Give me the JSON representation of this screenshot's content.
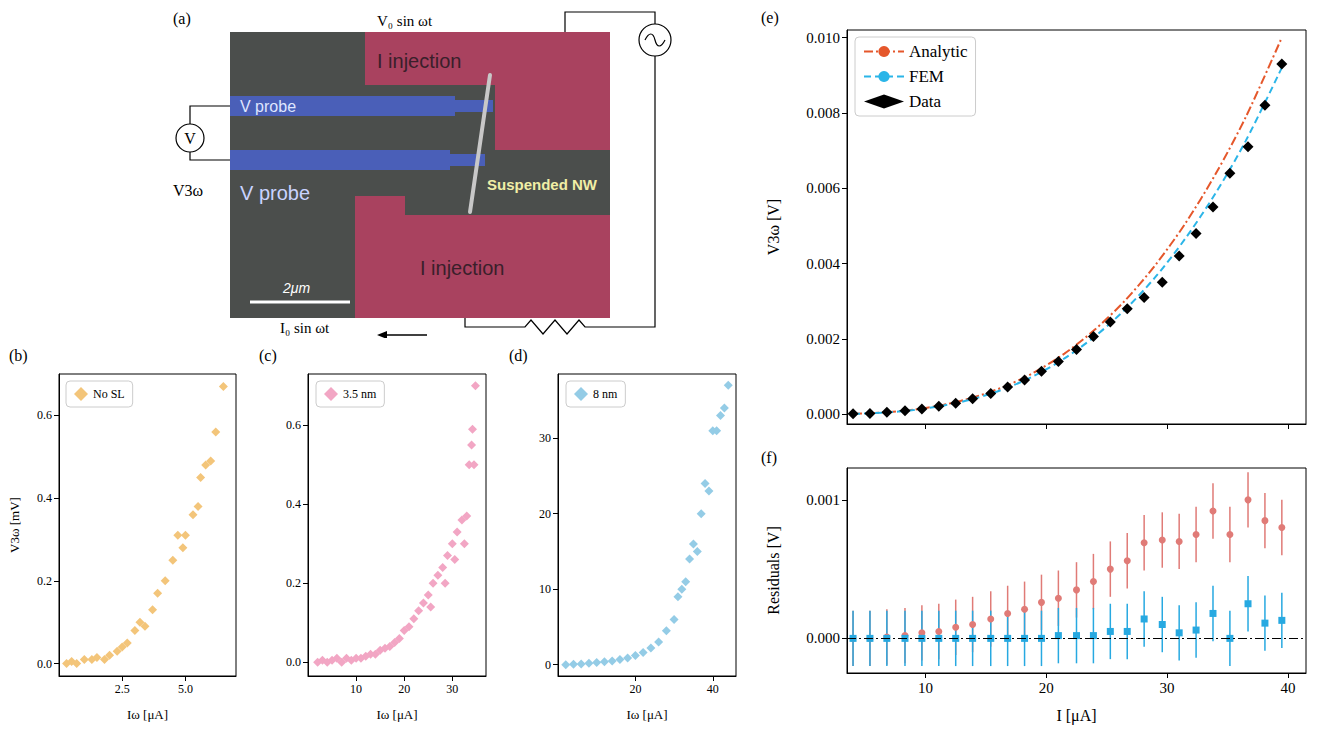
{
  "diagram": {
    "label": "(a)",
    "probes": [
      "V probe",
      "V probe"
    ],
    "injections": [
      "I injection",
      "I injection"
    ],
    "nanowire": "Suspended NW",
    "scale_bar": "2μm",
    "source": "V₀ sin ωt",
    "meter": "V",
    "measured": "V3ω",
    "current": "I₀ sin ωt"
  },
  "chart_data": [
    {
      "label": "(b)",
      "type": "scatter",
      "x_label": "Iω [μA]",
      "y_label": "V3ω [mV]",
      "xlim": [
        0,
        7
      ],
      "xticks": [
        2.5,
        {
          "value": 5,
          "label": "5.0"
        }
      ],
      "ylim": [
        -0.03,
        0.7
      ],
      "yticks": [
        {
          "value": 0,
          "label": "0.0"
        },
        0.2,
        0.4,
        0.6
      ],
      "legend": "upper left",
      "series": [
        {
          "name": "No SL",
          "color": "#f3c57a",
          "marker": "diamond",
          "x": [
            0.3,
            0.5,
            0.7,
            1.0,
            1.3,
            1.5,
            1.8,
            2.0,
            2.3,
            2.5,
            2.7,
            3.0,
            3.2,
            3.4,
            3.7,
            3.9,
            4.2,
            4.5,
            4.7,
            4.9,
            5.0,
            5.3,
            5.5,
            5.6,
            5.8,
            6.0,
            6.2,
            6.5
          ],
          "values": [
            0.0,
            0.005,
            0.0,
            0.01,
            0.01,
            0.015,
            0.01,
            0.02,
            0.03,
            0.04,
            0.05,
            0.08,
            0.1,
            0.09,
            0.13,
            0.17,
            0.2,
            0.25,
            0.31,
            0.28,
            0.31,
            0.36,
            0.38,
            0.45,
            0.48,
            0.49,
            0.56,
            0.67
          ]
        }
      ]
    },
    {
      "label": "(c)",
      "type": "scatter",
      "x_label": "Iω [μA]",
      "xlim": [
        0,
        37
      ],
      "xticks": [
        10,
        20,
        30
      ],
      "ylim": [
        -0.035,
        0.73
      ],
      "yticks": [
        {
          "value": 0,
          "label": "0.0"
        },
        0.2,
        0.4,
        0.6
      ],
      "legend": "upper left",
      "series": [
        {
          "name": "3.5 nm",
          "color": "#f2a6c4",
          "marker": "diamond",
          "x": [
            2,
            3,
            4,
            5,
            6,
            7,
            8,
            9,
            10,
            11,
            12,
            13,
            14,
            15,
            16,
            17,
            18,
            19,
            20,
            21,
            22,
            23,
            24,
            25,
            25.5,
            26,
            27,
            28,
            28.5,
            29,
            30,
            30.5,
            31,
            32,
            32.5,
            33,
            33.5,
            34,
            34.2,
            34.5,
            34.8
          ],
          "values": [
            0,
            0.005,
            0,
            0.005,
            0.01,
            0,
            0.01,
            0.005,
            0.01,
            0.01,
            0.015,
            0.02,
            0.02,
            0.03,
            0.035,
            0.04,
            0.05,
            0.06,
            0.08,
            0.09,
            0.11,
            0.13,
            0.15,
            0.17,
            0.14,
            0.2,
            0.22,
            0.24,
            0.2,
            0.27,
            0.3,
            0.26,
            0.33,
            0.36,
            0.3,
            0.37,
            0.5,
            0.55,
            0.59,
            0.5,
            0.7
          ]
        }
      ]
    },
    {
      "label": "(d)",
      "type": "scatter",
      "x_label": "Iω [μA]",
      "xlim": [
        0,
        46
      ],
      "xticks": [
        20,
        40
      ],
      "ylim": [
        -1.5,
        38.5
      ],
      "yticks": [
        0,
        10,
        20,
        30
      ],
      "legend": "upper left",
      "series": [
        {
          "name": "8 nm",
          "color": "#94cce6",
          "marker": "diamond",
          "x": [
            2,
            4,
            6,
            8,
            10,
            12,
            14,
            16,
            18,
            20,
            22,
            24,
            26,
            28,
            30,
            31,
            32,
            33,
            34,
            35,
            36,
            37,
            38,
            39,
            40,
            41,
            42,
            43,
            44
          ],
          "values": [
            0,
            0.05,
            0.1,
            0.2,
            0.3,
            0.4,
            0.5,
            0.7,
            0.9,
            1.2,
            1.6,
            2.2,
            3,
            4.5,
            6,
            9,
            10,
            11,
            14,
            16,
            15,
            20,
            24,
            23,
            31,
            31,
            33,
            34,
            37
          ]
        }
      ]
    },
    {
      "label": "(e)",
      "type": "line",
      "y_label": "V3ω [V]",
      "xlim": [
        3.5,
        41.5
      ],
      "xticks": [
        10,
        20,
        30,
        40
      ],
      "ylim": [
        -0.00026,
        0.0102
      ],
      "yticks": [
        {
          "value": 0,
          "label": "0.000"
        },
        {
          "value": 0.002,
          "label": "0.002"
        },
        {
          "value": 0.004,
          "label": "0.004"
        },
        {
          "value": 0.006,
          "label": "0.006"
        },
        {
          "value": 0.008,
          "label": "0.008"
        },
        {
          "value": 0.01,
          "label": "0.010"
        }
      ],
      "tick_labels": "y",
      "legend": "upper left",
      "series": [
        {
          "name": "Analytic",
          "type": "line",
          "color": "#e5572b",
          "line_style": "dashdot",
          "x": [
            4,
            6.5,
            9,
            11.5,
            14,
            16.5,
            19,
            21.5,
            24,
            26.5,
            29,
            31.5,
            34,
            36.5,
            39.5
          ],
          "values": [
            1e-05,
            4.4e-05,
            0.00012,
            0.00025,
            0.00045,
            0.00073,
            0.00111,
            0.00161,
            0.00224,
            0.00301,
            0.00395,
            0.00506,
            0.00637,
            0.00788,
            0.01
          ]
        },
        {
          "name": "FEM",
          "type": "line",
          "color": "#2bb5e8",
          "line_style": "dashed",
          "x": [
            4,
            6.5,
            9,
            11.5,
            14,
            16.5,
            19,
            21.5,
            24,
            26.5,
            29,
            31.5,
            34,
            36.5,
            39.5
          ],
          "values": [
            1e-05,
            4e-05,
            0.00011,
            0.00023,
            0.00041,
            0.00067,
            0.00102,
            0.00148,
            0.00206,
            0.00277,
            0.00363,
            0.00466,
            0.00586,
            0.00725,
            0.0092
          ]
        },
        {
          "name": "Data",
          "type": "scatter",
          "color": "#000000",
          "marker": "diamond",
          "x": [
            4.0,
            5.4,
            6.8,
            8.3,
            9.7,
            11.1,
            12.5,
            13.9,
            15.4,
            16.8,
            18.2,
            19.6,
            21.0,
            22.5,
            23.9,
            25.3,
            26.7,
            28.1,
            29.6,
            31.0,
            32.4,
            33.8,
            35.2,
            36.7,
            38.1,
            39.5
          ],
          "values": [
            1e-05,
            2e-05,
            5e-05,
            9e-05,
            0.00014,
            0.00021,
            0.00029,
            0.00041,
            0.00055,
            0.00072,
            0.00091,
            0.00114,
            0.0014,
            0.00172,
            0.00206,
            0.00245,
            0.0028,
            0.0031,
            0.0035,
            0.0042,
            0.0048,
            0.0055,
            0.0064,
            0.0071,
            0.0082,
            0.0093
          ]
        }
      ]
    },
    {
      "label": "(f)",
      "type": "scatter",
      "x_label": "I [μA]",
      "y_label": "Residuals [V]",
      "xlim": [
        3.5,
        41.5
      ],
      "xticks": [
        10,
        20,
        30,
        40
      ],
      "ylim": [
        -0.00025,
        0.00123
      ],
      "yticks": [
        {
          "value": 0,
          "label": "0.000"
        },
        {
          "value": 0.001,
          "label": "0.001"
        }
      ],
      "hline": 0,
      "series": [
        {
          "color": "#e07b77",
          "marker": "circle",
          "x": [
            4.0,
            5.4,
            6.8,
            8.3,
            9.7,
            11.1,
            12.5,
            13.9,
            15.4,
            16.8,
            18.2,
            19.6,
            21.0,
            22.5,
            23.9,
            25.3,
            26.7,
            28.1,
            29.6,
            31.0,
            32.4,
            33.8,
            35.2,
            36.7,
            38.1,
            39.5
          ],
          "values": [
            0,
            0,
            1e-05,
            2e-05,
            4e-05,
            5e-05,
            8e-05,
            0.0001,
            0.00014,
            0.00018,
            0.00021,
            0.00026,
            0.00029,
            0.00035,
            0.00041,
            0.0005,
            0.00056,
            0.00069,
            0.00071,
            0.0007,
            0.00075,
            0.00092,
            0.00075,
            0.001,
            0.00085,
            0.0008
          ],
          "errors": [
            0.0002,
            0.0002,
            0.0002,
            0.0002,
            0.0002,
            0.0002,
            0.0002,
            0.0002,
            0.0002,
            0.0002,
            0.0002,
            0.0002,
            0.0002,
            0.0002,
            0.0002,
            0.0002,
            0.0002,
            0.0002,
            0.0002,
            0.0002,
            0.0002,
            0.0002,
            0.0002,
            0.0002,
            0.0002,
            0.0002
          ]
        },
        {
          "color": "#27a9e1",
          "marker": "square",
          "x": [
            4.0,
            5.4,
            6.8,
            8.3,
            9.7,
            11.1,
            12.5,
            13.9,
            15.4,
            16.8,
            18.2,
            19.6,
            21.0,
            22.5,
            23.9,
            25.3,
            26.7,
            28.1,
            29.6,
            31.0,
            32.4,
            33.8,
            35.2,
            36.7,
            38.1,
            39.5
          ],
          "values": [
            0,
            0,
            0,
            0,
            0,
            0,
            0,
            0,
            0,
            0,
            0,
            0,
            2e-05,
            2e-05,
            2e-05,
            5e-05,
            5e-05,
            0.00014,
            0.0001,
            4e-05,
            6e-05,
            0.00018,
            0,
            0.00025,
            0.00011,
            0.00013
          ],
          "errors": [
            0.0002,
            0.0002,
            0.0002,
            0.0002,
            0.0002,
            0.0002,
            0.0002,
            0.0002,
            0.0002,
            0.0002,
            0.0002,
            0.0002,
            0.0002,
            0.0002,
            0.0002,
            0.0002,
            0.0002,
            0.0002,
            0.0002,
            0.0002,
            0.0002,
            0.0002,
            0.0002,
            0.0002,
            0.0002,
            0.0002
          ]
        }
      ]
    }
  ]
}
